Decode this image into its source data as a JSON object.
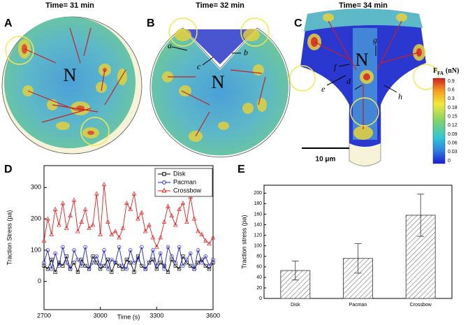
{
  "figure": {
    "panels": [
      {
        "letter": "A",
        "title": "Time= 31 min",
        "nucleus": "N"
      },
      {
        "letter": "B",
        "title": "Time= 32 min",
        "nucleus": "N",
        "annotations": [
          "a",
          "b",
          "c"
        ]
      },
      {
        "letter": "C",
        "title": "Time= 34 min",
        "nucleus": "N",
        "annotations": [
          "d",
          "e",
          "f",
          "g",
          "h"
        ]
      }
    ],
    "colorbar": {
      "label": "F",
      "label_sub": "FA",
      "unit": "(nN)",
      "ticks": [
        0.9,
        0.6,
        0.3,
        0.18,
        0.15,
        0.12,
        0.09,
        0.06,
        0.03,
        0
      ]
    },
    "scale_bar": "10 μm"
  },
  "chart_data": [
    {
      "type": "line",
      "panel": "D",
      "x_label": "Time (s)",
      "y_label": "Traction Stress (pa)",
      "xlim": [
        2700,
        3600
      ],
      "xticks": [
        2700,
        3000,
        3300,
        3600
      ],
      "ylim": [
        -90,
        370
      ],
      "yticks": [
        0,
        100,
        200,
        300
      ],
      "legend": "upper right",
      "x": [
        2700,
        2720,
        2740,
        2760,
        2780,
        2800,
        2820,
        2840,
        2860,
        2880,
        2900,
        2920,
        2940,
        2960,
        2980,
        3000,
        3020,
        3040,
        3060,
        3080,
        3100,
        3120,
        3140,
        3160,
        3180,
        3200,
        3220,
        3240,
        3260,
        3280,
        3300,
        3320,
        3340,
        3360,
        3380,
        3400,
        3420,
        3440,
        3460,
        3480,
        3500,
        3520,
        3540,
        3560,
        3580,
        3600
      ],
      "series": [
        {
          "name": "Disk",
          "color": "#000000",
          "marker": "square",
          "values": [
            50,
            40,
            70,
            30,
            60,
            50,
            80,
            40,
            60,
            30,
            70,
            50,
            40,
            80,
            60,
            40,
            50,
            70,
            30,
            60,
            50,
            40,
            70,
            60,
            30,
            80,
            50,
            40,
            60,
            70,
            40,
            60,
            50,
            30,
            70,
            50,
            40,
            80,
            60,
            50,
            40,
            60,
            70,
            50,
            40,
            60
          ]
        },
        {
          "name": "Pacman",
          "color": "#1f1fd0",
          "marker": "circle",
          "values": [
            60,
            100,
            40,
            90,
            50,
            110,
            60,
            40,
            100,
            70,
            50,
            110,
            40,
            60,
            80,
            50,
            100,
            40,
            70,
            60,
            110,
            50,
            40,
            100,
            60,
            70,
            110,
            40,
            60,
            100,
            50,
            90,
            40,
            110,
            80,
            60,
            110,
            50,
            70,
            90,
            40,
            100,
            60,
            80,
            50,
            70
          ]
        },
        {
          "name": "Crossbow",
          "color": "#e02020",
          "marker": "triangle",
          "values": [
            130,
            200,
            150,
            230,
            180,
            250,
            170,
            210,
            260,
            160,
            190,
            230,
            170,
            180,
            280,
            150,
            310,
            190,
            150,
            160,
            140,
            170,
            250,
            230,
            280,
            200,
            220,
            160,
            180,
            140,
            110,
            140,
            190,
            240,
            210,
            180,
            230,
            250,
            190,
            270,
            200,
            160,
            150,
            130,
            120,
            140
          ]
        }
      ]
    },
    {
      "type": "bar",
      "panel": "E",
      "y_label": "Traction stress (pa)",
      "categories": [
        "Disk",
        "Pacman",
        "Crossbow"
      ],
      "values": [
        53,
        76,
        158
      ],
      "errors": [
        18,
        28,
        40
      ],
      "ylim": [
        0,
        215
      ],
      "yticks": [
        0,
        20,
        40,
        60,
        80,
        100,
        120,
        140,
        160,
        180,
        200
      ],
      "hatch": true
    }
  ]
}
